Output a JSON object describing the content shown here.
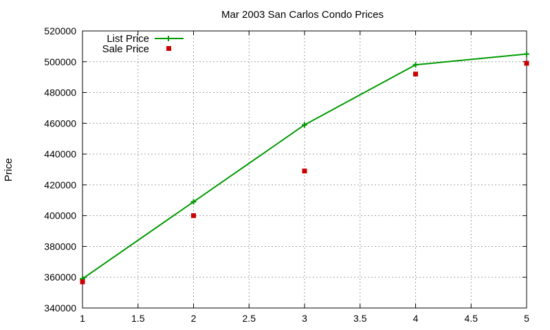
{
  "chart_data": {
    "type": "line",
    "title": "Mar 2003 San Carlos Condo Prices",
    "xlabel": "",
    "ylabel": "Price",
    "xlim": [
      1,
      5
    ],
    "ylim": [
      340000,
      520000
    ],
    "x_ticks": [
      1,
      1.5,
      2,
      2.5,
      3,
      3.5,
      4,
      4.5,
      5
    ],
    "y_ticks": [
      340000,
      360000,
      380000,
      400000,
      420000,
      440000,
      460000,
      480000,
      500000,
      520000
    ],
    "grid": true,
    "legend_position": "top-left",
    "series": [
      {
        "name": "List Price",
        "style": "linespoints",
        "marker": "plus",
        "color": "#009900",
        "x": [
          1,
          2,
          3,
          4,
          5
        ],
        "y": [
          359000,
          409000,
          459000,
          498000,
          505000
        ]
      },
      {
        "name": "Sale Price",
        "style": "points",
        "marker": "square",
        "color": "#cc0000",
        "x": [
          1,
          2,
          3,
          4,
          5
        ],
        "y": [
          357000,
          400000,
          429000,
          492000,
          499000
        ]
      }
    ]
  }
}
